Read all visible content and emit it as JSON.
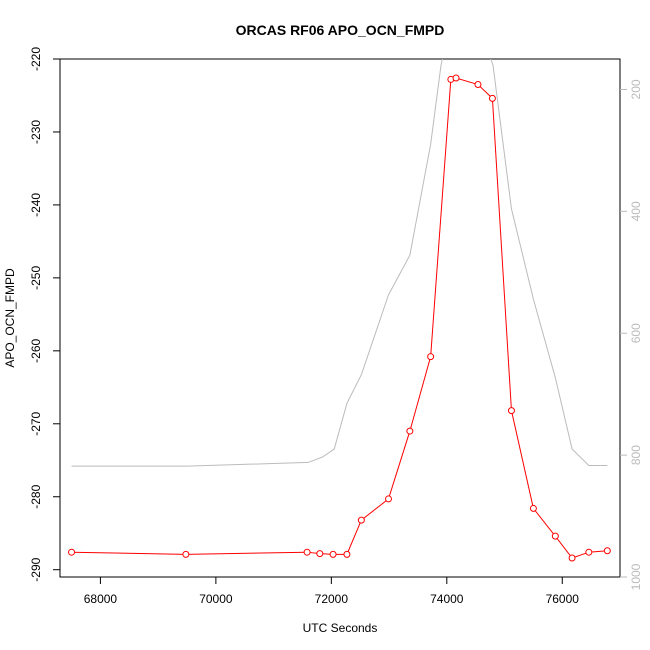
{
  "chart_data": {
    "type": "line",
    "title": "ORCAS RF06 APO_OCN_FMPD",
    "xlabel": "UTC Seconds",
    "ylabel": "APO_OCN_FMPD",
    "xlim": [
      67300,
      77000
    ],
    "ylim": [
      -291,
      -220
    ],
    "y2lim": [
      1000,
      150
    ],
    "x_ticks": [
      68000,
      70000,
      72000,
      74000,
      76000
    ],
    "y_ticks": [
      -290,
      -280,
      -270,
      -260,
      -250,
      -240,
      -230,
      -220
    ],
    "y2_ticks": [
      200,
      400,
      600,
      800,
      1000
    ],
    "grid": false,
    "series": [
      {
        "color": "#ff0000",
        "axis": "left",
        "marker": "open-circle",
        "x": [
          67500,
          69480,
          71580,
          71800,
          72030,
          72270,
          72520,
          72990,
          73360,
          73720,
          74070,
          74160,
          74540,
          74790,
          75120,
          75500,
          75880,
          76170,
          76460,
          76780
        ],
        "y": [
          -287.6,
          -287.9,
          -287.6,
          -287.8,
          -287.9,
          -287.9,
          -283.2,
          -280.3,
          -271.0,
          -260.8,
          -222.8,
          -222.6,
          -223.5,
          -225.4,
          -268.2,
          -281.6,
          -285.4,
          -288.4,
          -287.6,
          -287.4
        ]
      },
      {
        "color": "#bbbbbb",
        "axis": "right",
        "marker": "none",
        "x": [
          67500,
          69500,
          71600,
          71850,
          72050,
          72270,
          72520,
          72990,
          73360,
          73720,
          73900,
          74070,
          74540,
          74800,
          75120,
          75500,
          75880,
          76170,
          76460,
          76780
        ],
        "y": [
          818,
          818,
          812,
          803,
          790,
          715,
          668,
          537,
          472,
          290,
          160,
          90,
          90,
          160,
          396,
          544,
          673,
          790,
          817,
          817
        ]
      }
    ]
  }
}
